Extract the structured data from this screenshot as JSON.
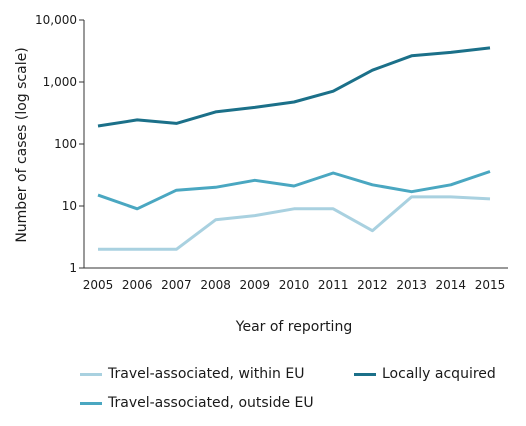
{
  "chart_data": {
    "type": "line",
    "x": [
      2005,
      2006,
      2007,
      2008,
      2009,
      2010,
      2011,
      2012,
      2013,
      2014,
      2015
    ],
    "xlabel": "Year of reporting",
    "ylabel": "Number of cases (log scale)",
    "yscale": "log",
    "ylim": [
      1,
      10000
    ],
    "yticks": [
      1,
      10,
      100,
      1000,
      10000
    ],
    "ytick_labels": [
      "1",
      "10",
      "100",
      "1,000",
      "10,000"
    ],
    "grid": false,
    "legend_position": "bottom",
    "series": [
      {
        "name": "Travel-associated, within EU",
        "color": "#a9d1e0",
        "values": [
          2,
          2,
          2,
          6,
          7,
          9,
          9,
          4,
          14,
          14,
          13
        ]
      },
      {
        "name": "Locally acquired",
        "color": "#1b7089",
        "values": [
          195,
          245,
          215,
          330,
          390,
          475,
          710,
          1550,
          2650,
          3000,
          3550
        ]
      },
      {
        "name": "Travel-associated, outside EU",
        "color": "#4aa7c1",
        "values": [
          15,
          9,
          18,
          20,
          26,
          21,
          34,
          22,
          17,
          22,
          36
        ]
      }
    ]
  }
}
